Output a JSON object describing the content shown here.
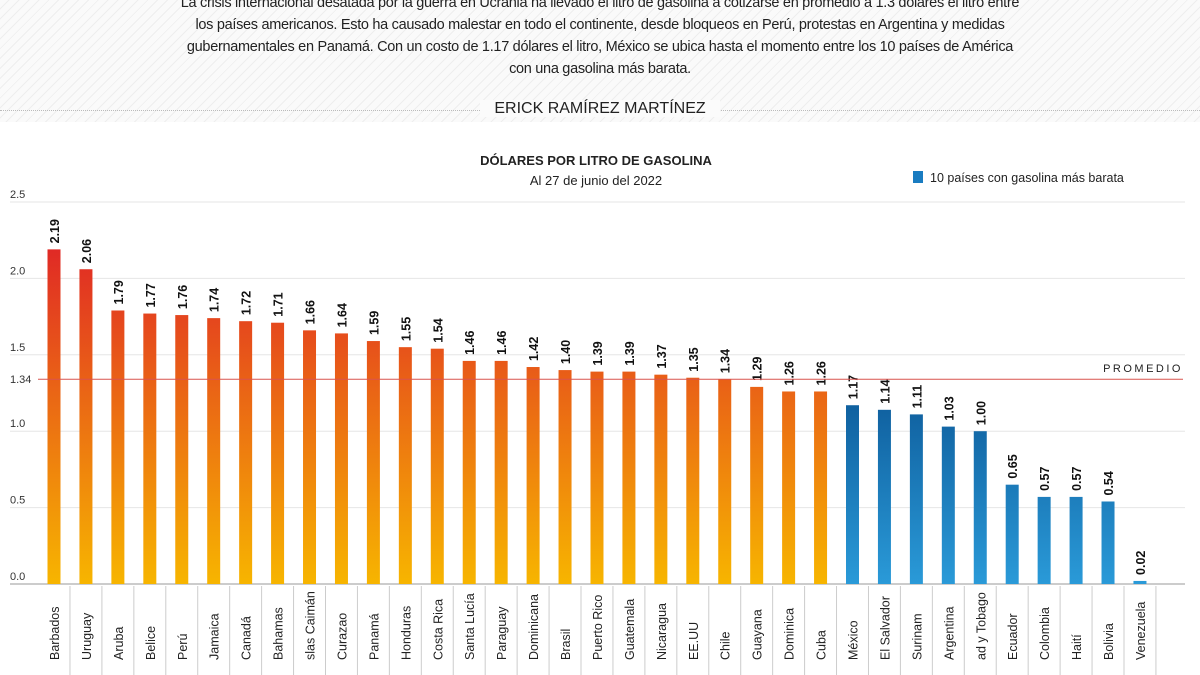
{
  "intro_text": "La crisis internacional desatada por la guerra en Ucrania ha llevado el litro de gasolina a cotizarse en promedio a 1.3 dólares el litro entre los países americanos. Esto ha causado malestar en todo el continente, desde bloqueos en Perú, protestas en Argentina y medidas gubernamentales en Panamá. Con un costo de 1.17 dólares el litro, México se ubica hasta el momento entre los 10 países de América con una gasolina más barata.",
  "author": "ERICK RAMÍREZ MARTÍNEZ",
  "chart_data": {
    "type": "bar",
    "title": "DÓLARES POR LITRO DE GASOLINA",
    "subtitle": "Al 27 de junio del 2022",
    "legend": {
      "label": "10 países con gasolina  más barata",
      "position": "top-right",
      "color": "#1a7cc1"
    },
    "colors": {
      "default_top": "#e02a25",
      "default_bottom": "#f7b500",
      "cheapest_top": "#0f5f9e",
      "cheapest_bottom": "#2a9ad8",
      "average_line": "#d9534f"
    },
    "ylim": [
      0,
      2.5
    ],
    "yticks": [
      "0.0",
      "0.5",
      "1.0",
      "1.5",
      "2.0",
      "2.5"
    ],
    "grid": true,
    "average": {
      "label": "PROMEDIO",
      "value": 1.34,
      "tick_label": "1.34"
    },
    "categories": [
      "Barbados",
      "Uruguay",
      "Aruba",
      "Belice",
      "Perú",
      "Jamaica",
      "Canadá",
      "Bahamas",
      "slas Caimán",
      "Curazao",
      "Panamá",
      "Honduras",
      "Costa Rica",
      "Santa Lucía",
      "Paraguay",
      "Dominicana",
      "Brasil",
      "Puerto Rico",
      "Guatemala",
      "Nicaragua",
      "EE.UU",
      "Chile",
      "Guayana",
      "Dominica",
      "Cuba",
      "México",
      "El Salvador",
      "Surinam",
      "Argentina",
      "ad y Tobago",
      "Ecuador",
      "Colombia",
      "Haití",
      "Bolivia",
      "Venezuela"
    ],
    "values": [
      2.19,
      2.06,
      1.79,
      1.77,
      1.76,
      1.74,
      1.72,
      1.71,
      1.66,
      1.64,
      1.59,
      1.55,
      1.54,
      1.46,
      1.46,
      1.42,
      1.4,
      1.39,
      1.39,
      1.37,
      1.35,
      1.34,
      1.29,
      1.26,
      1.26,
      1.17,
      1.14,
      1.11,
      1.03,
      1.0,
      0.65,
      0.57,
      0.57,
      0.54,
      0.02
    ],
    "value_labels": [
      "2.19",
      "2.06",
      "1.79",
      "1.77",
      "1.76",
      "1.74",
      "1.72",
      "1.71",
      "1.66",
      "1.64",
      "1.59",
      "1.55",
      "1.54",
      "1.46",
      "1.46",
      "1.42",
      "1.40",
      "1.39",
      "1.39",
      "1.37",
      "1.35",
      "1.34",
      "1.29",
      "1.26",
      "1.26",
      "1.17",
      "1.14",
      "1.11",
      "1.03",
      "1.00",
      "0.65",
      "0.57",
      "0.57",
      "0.54",
      "0.02"
    ],
    "cheapest_from_index": 25
  }
}
